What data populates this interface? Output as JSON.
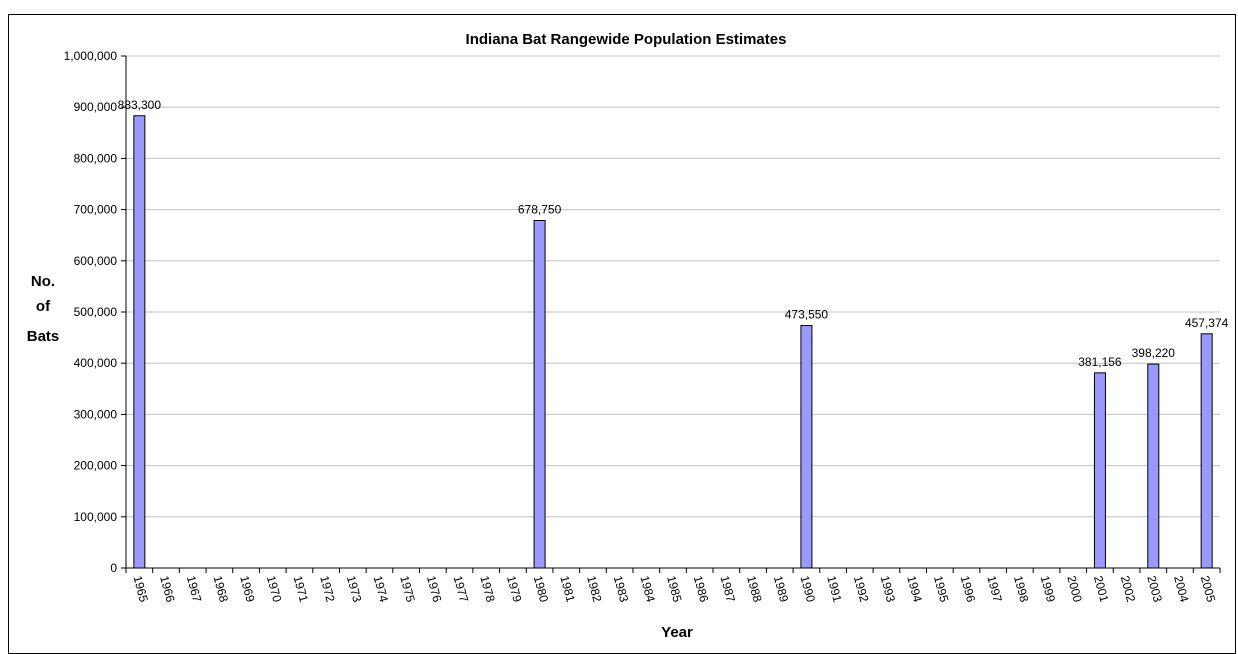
{
  "chart_data": {
    "type": "bar",
    "title": "Indiana Bat Rangewide Population Estimates",
    "xlabel": "Year",
    "ylabel": [
      "No.",
      "of",
      "Bats"
    ],
    "ylim": [
      0,
      1000000
    ],
    "yticks": [
      "0",
      "100,000",
      "200,000",
      "300,000",
      "400,000",
      "500,000",
      "600,000",
      "700,000",
      "800,000",
      "900,000",
      "1,000,000"
    ],
    "categories": [
      "1965",
      "1966",
      "1967",
      "1968",
      "1969",
      "1970",
      "1971",
      "1972",
      "1973",
      "1974",
      "1975",
      "1976",
      "1977",
      "1978",
      "1979",
      "1980",
      "1981",
      "1982",
      "1983",
      "1984",
      "1985",
      "1986",
      "1987",
      "1988",
      "1989",
      "1990",
      "1991",
      "1992",
      "1993",
      "1994",
      "1995",
      "1996",
      "1997",
      "1998",
      "1999",
      "2000",
      "2001",
      "2002",
      "2003",
      "2004",
      "2005"
    ],
    "values": [
      883300,
      null,
      null,
      null,
      null,
      null,
      null,
      null,
      null,
      null,
      null,
      null,
      null,
      null,
      null,
      678750,
      null,
      null,
      null,
      null,
      null,
      null,
      null,
      null,
      null,
      473550,
      null,
      null,
      null,
      null,
      null,
      null,
      null,
      null,
      null,
      null,
      381156,
      null,
      398220,
      null,
      457374
    ],
    "data_labels": [
      "883,300",
      null,
      null,
      null,
      null,
      null,
      null,
      null,
      null,
      null,
      null,
      null,
      null,
      null,
      null,
      "678,750",
      null,
      null,
      null,
      null,
      null,
      null,
      null,
      null,
      null,
      "473,550",
      null,
      null,
      null,
      null,
      null,
      null,
      null,
      null,
      null,
      null,
      "381,156",
      null,
      "398,220",
      null,
      "457,374"
    ],
    "grid": true,
    "bar_color": "#9999ff"
  }
}
